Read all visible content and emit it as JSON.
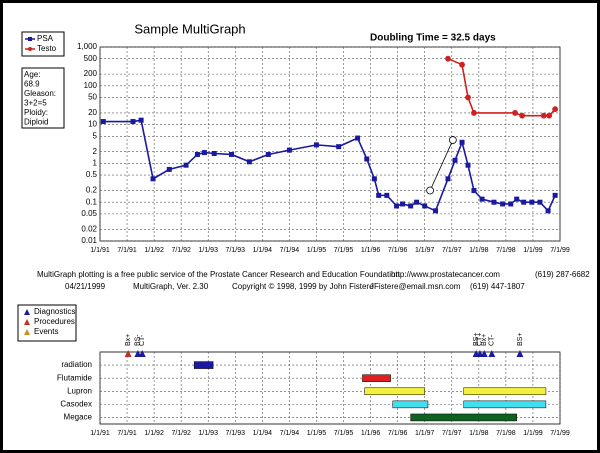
{
  "chart_data": {
    "type": "line",
    "title": "Sample MultiGraph",
    "annotation": "Doubling Time =  32.5 days",
    "info": [
      "Age:",
      "68.9",
      "Gleason:",
      "3+2=5",
      "Ploidy:",
      "Diploid"
    ],
    "log_y": true,
    "grid": true,
    "xlim": [
      1991,
      1999.5
    ],
    "xticks": [
      {
        "value": 1991,
        "label": "1/1/91"
      },
      {
        "value": 1991.5,
        "label": "7/1/91"
      },
      {
        "value": 1992,
        "label": "1/1/92"
      },
      {
        "value": 1992.5,
        "label": "7/1/92"
      },
      {
        "value": 1993,
        "label": "1/1/93"
      },
      {
        "value": 1993.5,
        "label": "7/1/93"
      },
      {
        "value": 1994,
        "label": "1/1/94"
      },
      {
        "value": 1994.5,
        "label": "7/1/94"
      },
      {
        "value": 1995,
        "label": "1/1/95"
      },
      {
        "value": 1995.5,
        "label": "7/1/95"
      },
      {
        "value": 1996,
        "label": "1/1/96"
      },
      {
        "value": 1996.5,
        "label": "7/1/96"
      },
      {
        "value": 1997,
        "label": "1/1/97"
      },
      {
        "value": 1997.5,
        "label": "7/1/97"
      },
      {
        "value": 1998,
        "label": "1/1/98"
      },
      {
        "value": 1998.5,
        "label": "7/1/98"
      },
      {
        "value": 1999,
        "label": "1/1/99"
      },
      {
        "value": 1999.5,
        "label": "7/1/99"
      }
    ],
    "ylim": [
      0.01,
      1000
    ],
    "yticks": [
      {
        "value": 1000,
        "label": "1,000"
      },
      500,
      200,
      100,
      50,
      20,
      10,
      5,
      2,
      1,
      0.5,
      0.2,
      0.1,
      0.05,
      0.02,
      0.01
    ],
    "series": [
      {
        "name": "PSA",
        "color": "#1a1aa0",
        "marker": "square",
        "x": [
          1991.06,
          1991.61,
          1991.76,
          1991.98,
          1992.28,
          1992.59,
          1992.8,
          1992.93,
          1993.11,
          1993.43,
          1993.76,
          1994.11,
          1994.5,
          1995.0,
          1995.41,
          1995.76,
          1995.93,
          1996.07,
          1996.15,
          1996.3,
          1996.48,
          1996.59,
          1996.74,
          1996.85,
          1997.0,
          1997.2,
          1997.43,
          1997.56,
          1997.69,
          1997.8,
          1997.91,
          1998.06,
          1998.28,
          1998.44,
          1998.59,
          1998.7,
          1998.83,
          1998.98,
          1999.13,
          1999.28,
          1999.41
        ],
        "values": [
          12,
          12,
          13,
          0.4,
          0.7,
          0.9,
          1.7,
          1.9,
          1.8,
          1.7,
          1.1,
          1.7,
          2.2,
          3,
          2.7,
          4.5,
          1.3,
          0.4,
          0.15,
          0.15,
          0.08,
          0.09,
          0.08,
          0.1,
          0.08,
          0.06,
          0.4,
          1.2,
          3.5,
          0.9,
          0.2,
          0.12,
          0.1,
          0.09,
          0.09,
          0.12,
          0.1,
          0.1,
          0.1,
          0.06,
          0.15
        ]
      },
      {
        "name": "Testo",
        "color": "#d02020",
        "marker": "circle",
        "x": [
          1997.43,
          1997.69,
          1997.8,
          1997.91,
          1998.67,
          1998.8,
          1999.2,
          1999.3,
          1999.41
        ],
        "values": [
          500,
          350,
          50,
          20,
          20,
          17,
          17,
          17,
          25
        ]
      },
      {
        "color": "#000000",
        "marker": "open-circle",
        "x": [
          1997.1,
          1997.52
        ],
        "values": [
          0.2,
          4
        ]
      }
    ],
    "footer": [
      [
        "MultiGraph plotting is a free public service of the Prostate Cancer Research and Education Foundation",
        "http://www.prostatecancer.com",
        "(619) 287-6682"
      ],
      [
        "04/21/1999",
        "MultiGraph, Ver. 2.30",
        "Copyright © 1998, 1999 by John Fistere",
        "JFistere@email.msn.com",
        "(619) 447-1807"
      ]
    ],
    "event_legend": [
      {
        "name": "Diagnostics",
        "color": "#1a1aa0"
      },
      {
        "name": "Procedures",
        "color": "#c03020"
      },
      {
        "name": "Events",
        "color": "#c89020"
      }
    ],
    "events": [
      {
        "x": 1991.52,
        "label": "Bx+",
        "color": "#c03020"
      },
      {
        "x": 1991.7,
        "label": "BS-",
        "color": "#1a1aa0"
      },
      {
        "x": 1991.78,
        "label": "CT-",
        "color": "#1a1aa0"
      },
      {
        "x": 1997.95,
        "label": "BS+",
        "color": "#1a1aa0"
      },
      {
        "x": 1998.02,
        "label": "CT+",
        "color": "#1a1aa0"
      },
      {
        "x": 1998.1,
        "label": "Bx+",
        "color": "#1a1aa0"
      },
      {
        "x": 1998.24,
        "label": "CT-",
        "color": "#1a1aa0"
      },
      {
        "x": 1998.76,
        "label": "BS+",
        "color": "#1a1aa0"
      }
    ],
    "treatments": [
      {
        "name": "radiation",
        "periods": [
          {
            "start": 1992.74,
            "end": 1993.09,
            "color": "#1a1aa0"
          }
        ]
      },
      {
        "name": "Flutamide",
        "periods": [
          {
            "start": 1995.85,
            "end": 1996.37,
            "color": "#e02020"
          }
        ]
      },
      {
        "name": "Lupron",
        "periods": [
          {
            "start": 1995.89,
            "end": 1997.0,
            "color": "#f4f040"
          },
          {
            "start": 1997.72,
            "end": 1999.24,
            "color": "#f4f040"
          }
        ]
      },
      {
        "name": "Casodex",
        "periods": [
          {
            "start": 1996.41,
            "end": 1997.06,
            "color": "#40e0f0"
          },
          {
            "start": 1997.72,
            "end": 1999.24,
            "color": "#40e0f0"
          }
        ]
      },
      {
        "name": "Megace",
        "periods": [
          {
            "start": 1996.74,
            "end": 1998.7,
            "color": "#106020"
          }
        ]
      }
    ]
  }
}
